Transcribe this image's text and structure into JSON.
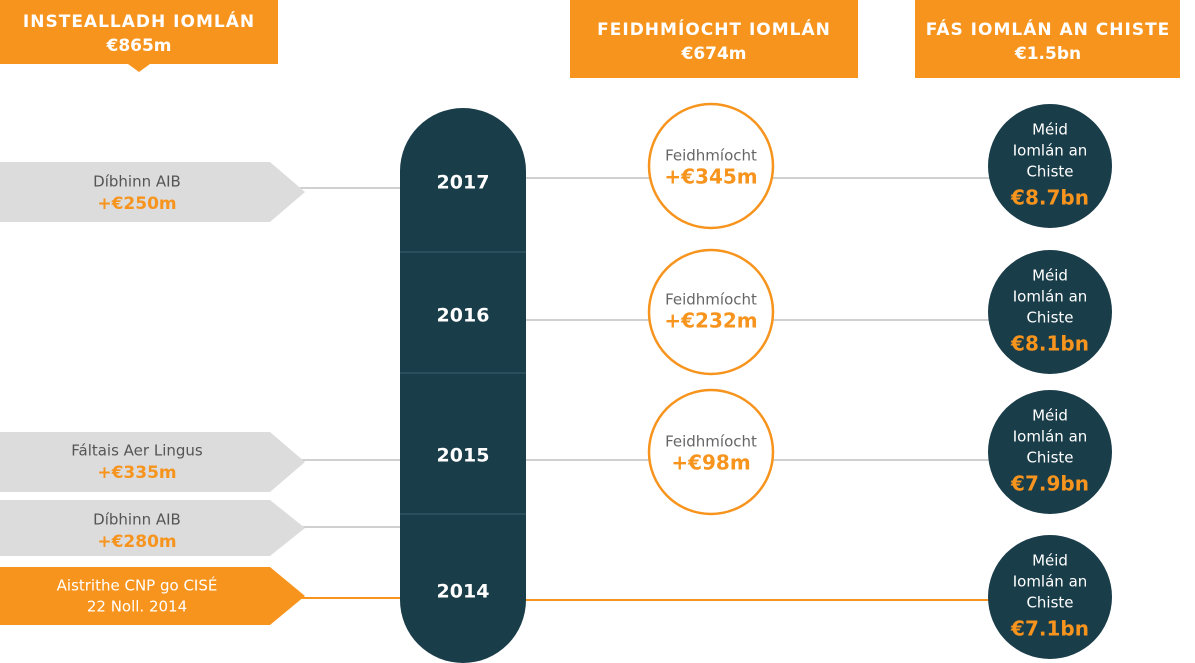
{
  "header": [
    {
      "title": "INSTEALLADH IOMLÁN",
      "value": "€865m"
    },
    {
      "title": "FEIDHMÍOCHT IOMLÁN",
      "value": "€674m"
    },
    {
      "title": "FÁS IOMLÁN AN CHISTE",
      "value": "€1.5bn"
    }
  ],
  "timeline": {
    "years": [
      "2017",
      "2016",
      "2015",
      "2014"
    ]
  },
  "injections": [
    {
      "label": "Díbhinn AIB",
      "value": "+€250m"
    },
    {
      "label": "Fáltais Aer Lingus",
      "value": "+€335m"
    },
    {
      "label": "Díbhinn AIB",
      "value": "+€280m"
    },
    {
      "label": "Aistrithe CNP go CISÉ",
      "value": "22 Noll. 2014"
    }
  ],
  "performance": [
    {
      "label": "Feidhmíocht",
      "value": "+€345m"
    },
    {
      "label": "Feidhmíocht",
      "value": "+€232m"
    },
    {
      "label": "Feidhmíocht",
      "value": "+€98m"
    }
  ],
  "fund": [
    {
      "lines": [
        "Méid",
        "Iomlán an",
        "Chiste"
      ],
      "value": "€8.7bn"
    },
    {
      "lines": [
        "Méid",
        "Iomlán an",
        "Chiste"
      ],
      "value": "€8.1bn"
    },
    {
      "lines": [
        "Méid",
        "Iomlán an",
        "Chiste"
      ],
      "value": "€7.9bn"
    },
    {
      "lines": [
        "Méid",
        "Iomlán an",
        "Chiste"
      ],
      "value": "€7.1bn"
    }
  ]
}
